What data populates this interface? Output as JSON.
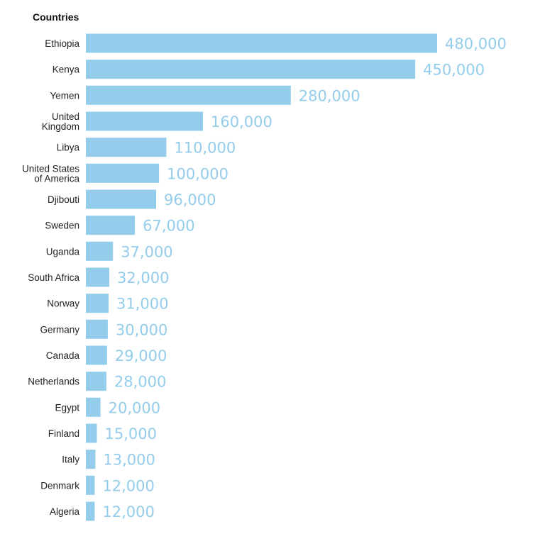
{
  "chart_data": {
    "type": "bar",
    "orientation": "horizontal",
    "title": "Countries",
    "xlabel": "",
    "ylabel": "",
    "categories": [
      [
        "Ethiopia"
      ],
      [
        "Kenya"
      ],
      [
        "Yemen"
      ],
      [
        "United",
        "Kingdom"
      ],
      [
        "Libya"
      ],
      [
        "United States",
        "of America"
      ],
      [
        "Djibouti"
      ],
      [
        "Sweden"
      ],
      [
        "Uganda"
      ],
      [
        "South Africa"
      ],
      [
        "Norway"
      ],
      [
        "Germany"
      ],
      [
        "Canada"
      ],
      [
        "Netherlands"
      ],
      [
        "Egypt"
      ],
      [
        "Finland"
      ],
      [
        "Italy"
      ],
      [
        "Denmark"
      ],
      [
        "Algeria"
      ]
    ],
    "values": [
      480000,
      450000,
      280000,
      160000,
      110000,
      100000,
      96000,
      67000,
      37000,
      32000,
      31000,
      30000,
      29000,
      28000,
      20000,
      15000,
      13000,
      12000,
      12000
    ],
    "value_labels": [
      "480,000",
      "450,000",
      "280,000",
      "160,000",
      "110,000",
      "100,000",
      "96,000",
      "67,000",
      "37,000",
      "32,000",
      "31,000",
      "30,000",
      "29,000",
      "28,000",
      "20,000",
      "15,000",
      "13,000",
      "12,000",
      "12,000"
    ],
    "xlim": [
      0,
      480000
    ],
    "grid": false,
    "legend": "none",
    "colors": {
      "bar": "#93cdeb",
      "value_label": "#93cdeb"
    }
  }
}
